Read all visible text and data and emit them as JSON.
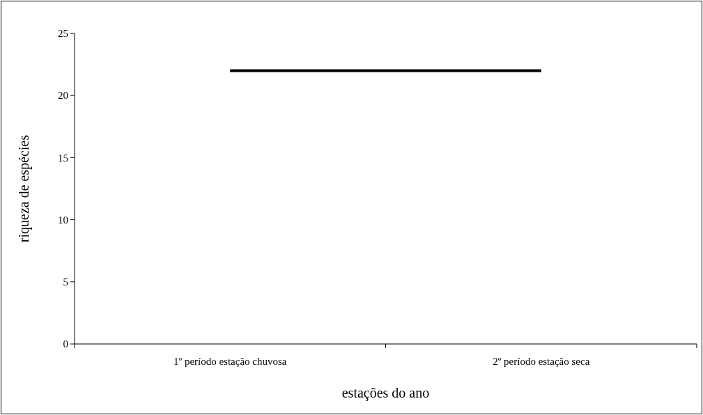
{
  "chart_data": {
    "type": "line",
    "xlabel": "estações do ano",
    "ylabel": "riqueza de espécies",
    "categories": [
      "1º período estação chuvosa",
      "2º período estação seca"
    ],
    "series": [
      {
        "color": "#000000",
        "values": [
          22,
          22
        ]
      }
    ],
    "ylim": [
      0,
      25
    ],
    "yticks": [
      0,
      5,
      10,
      15,
      20,
      25
    ],
    "grid": false,
    "marker": "none",
    "line_style": "solid"
  }
}
